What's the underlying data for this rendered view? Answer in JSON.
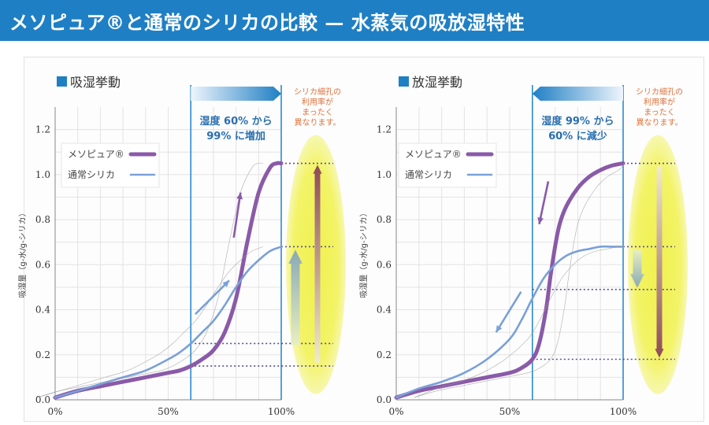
{
  "header": {
    "title": "メソピュア®と通常のシリカの比較 — 水蒸気の吸放湿特性"
  },
  "chart_data": [
    {
      "type": "line",
      "title": "吸湿挙動",
      "ylabel": "吸湿量（g-水/g-シリカ）",
      "xlabel": "",
      "x_ticks": [
        "0%",
        "50%",
        "100%"
      ],
      "y_ticks": [
        "0.0",
        "0.2",
        "0.4",
        "0.6",
        "0.8",
        "1.0",
        "1.2"
      ],
      "xlim": [
        0,
        100
      ],
      "ylim": [
        0,
        1.3
      ],
      "grid": true,
      "legend_position": "top-left",
      "series": [
        {
          "name": "メソピュア®",
          "color": "#8a5aa8",
          "x": [
            0,
            10,
            20,
            30,
            40,
            50,
            55,
            60,
            65,
            70,
            75,
            80,
            85,
            90,
            95,
            98,
            100
          ],
          "y": [
            0.01,
            0.04,
            0.06,
            0.08,
            0.1,
            0.12,
            0.13,
            0.15,
            0.18,
            0.22,
            0.3,
            0.45,
            0.7,
            0.92,
            1.03,
            1.05,
            1.05
          ]
        },
        {
          "name": "通常シリカ",
          "color": "#7aa0d8",
          "x": [
            0,
            10,
            20,
            30,
            40,
            50,
            55,
            60,
            65,
            70,
            75,
            80,
            85,
            90,
            95,
            100
          ],
          "y": [
            0.01,
            0.04,
            0.07,
            0.1,
            0.13,
            0.18,
            0.21,
            0.25,
            0.3,
            0.35,
            0.42,
            0.5,
            0.57,
            0.62,
            0.66,
            0.68
          ]
        }
      ],
      "band": {
        "from": 60,
        "to": 100,
        "label": "湿度 60% から 99% に増加"
      },
      "reference_levels": [
        0.15,
        0.25,
        0.68,
        1.05
      ],
      "annotation": "シリカ細孔の 利用率が まったく 異なります。"
    },
    {
      "type": "line",
      "title": "放湿挙動",
      "ylabel": "吸湿量（g-水/g-シリカ）",
      "xlabel": "",
      "x_ticks": [
        "0%",
        "50%",
        "100%"
      ],
      "y_ticks": [
        "0.0",
        "0.2",
        "0.4",
        "0.6",
        "0.8",
        "1.0",
        "1.2"
      ],
      "xlim": [
        0,
        100
      ],
      "ylim": [
        0,
        1.3
      ],
      "grid": true,
      "legend_position": "top-left",
      "series": [
        {
          "name": "メソピュア®",
          "color": "#8a5aa8",
          "x": [
            0,
            10,
            20,
            30,
            40,
            50,
            55,
            60,
            63,
            66,
            68,
            70,
            72,
            75,
            80,
            85,
            90,
            95,
            100
          ],
          "y": [
            0.01,
            0.04,
            0.06,
            0.08,
            0.1,
            0.12,
            0.14,
            0.18,
            0.25,
            0.4,
            0.55,
            0.68,
            0.78,
            0.86,
            0.94,
            0.99,
            1.02,
            1.04,
            1.05
          ]
        },
        {
          "name": "通常シリカ",
          "color": "#7aa0d8",
          "x": [
            0,
            10,
            20,
            30,
            40,
            50,
            55,
            60,
            65,
            70,
            75,
            80,
            85,
            90,
            95,
            100
          ],
          "y": [
            0.01,
            0.05,
            0.08,
            0.12,
            0.18,
            0.27,
            0.35,
            0.45,
            0.54,
            0.6,
            0.64,
            0.66,
            0.67,
            0.68,
            0.68,
            0.68
          ]
        }
      ],
      "band": {
        "from": 60,
        "to": 100,
        "label": "湿度 99% から 60% に減少"
      },
      "reference_levels": [
        0.18,
        0.49,
        0.68,
        1.05
      ],
      "annotation": "シリカ細孔の 利用率が まったく 異なります。"
    }
  ]
}
